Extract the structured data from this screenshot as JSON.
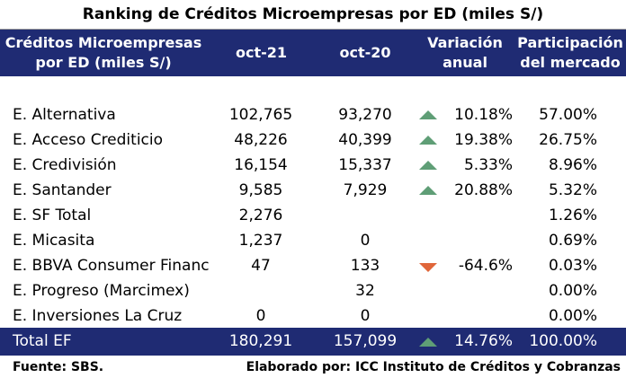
{
  "title": "Ranking de Créditos Microempresas por ED (miles S/)",
  "header": {
    "col0": [
      "Créditos Microempresas",
      "por ED (miles S/)"
    ],
    "col1": "oct-21",
    "col2": "oct-20",
    "col3": [
      "Variación",
      "anual"
    ],
    "col4": [
      "Participación",
      "del mercado"
    ]
  },
  "rows": [
    {
      "name": "E. Alternativa",
      "oct21": "102,765",
      "oct20": "93,270",
      "trend": "up",
      "var": "10.18%",
      "share": "57.00%"
    },
    {
      "name": "E. Acceso Crediticio",
      "oct21": "48,226",
      "oct20": "40,399",
      "trend": "up",
      "var": "19.38%",
      "share": "26.75%"
    },
    {
      "name": "E. Credivisión",
      "oct21": "16,154",
      "oct20": "15,337",
      "trend": "up",
      "var": "5.33%",
      "share": "8.96%"
    },
    {
      "name": "E. Santander",
      "oct21": "9,585",
      "oct20": "7,929",
      "trend": "up",
      "var": "20.88%",
      "share": "5.32%"
    },
    {
      "name": "E. SF Total",
      "oct21": "2,276",
      "oct20": "",
      "trend": "",
      "var": "",
      "share": "1.26%"
    },
    {
      "name": "E. Micasita",
      "oct21": "1,237",
      "oct20": "0",
      "trend": "",
      "var": "",
      "share": "0.69%"
    },
    {
      "name": "E. BBVA Consumer Financ",
      "oct21": "47",
      "oct20": "133",
      "trend": "down",
      "var": "-64.6%",
      "share": "0.03%"
    },
    {
      "name": "E. Progreso (Marcimex)",
      "oct21": "",
      "oct20": "32",
      "trend": "",
      "var": "",
      "share": "0.00%"
    },
    {
      "name": "E. Inversiones La Cruz",
      "oct21": "0",
      "oct20": "0",
      "trend": "",
      "var": "",
      "share": "0.00%"
    }
  ],
  "total": {
    "name": "Total EF",
    "oct21": "180,291",
    "oct20": "157,099",
    "trend": "up",
    "var": "14.76%",
    "share": "100.00%"
  },
  "footer": {
    "source": "Fuente: SBS.",
    "credit": "Elaborado por: ICC Instituto de Créditos y Cobranzas"
  },
  "colors": {
    "header_bg": "#1f2b73",
    "up": "#5f9e76",
    "down": "#e0663a"
  }
}
